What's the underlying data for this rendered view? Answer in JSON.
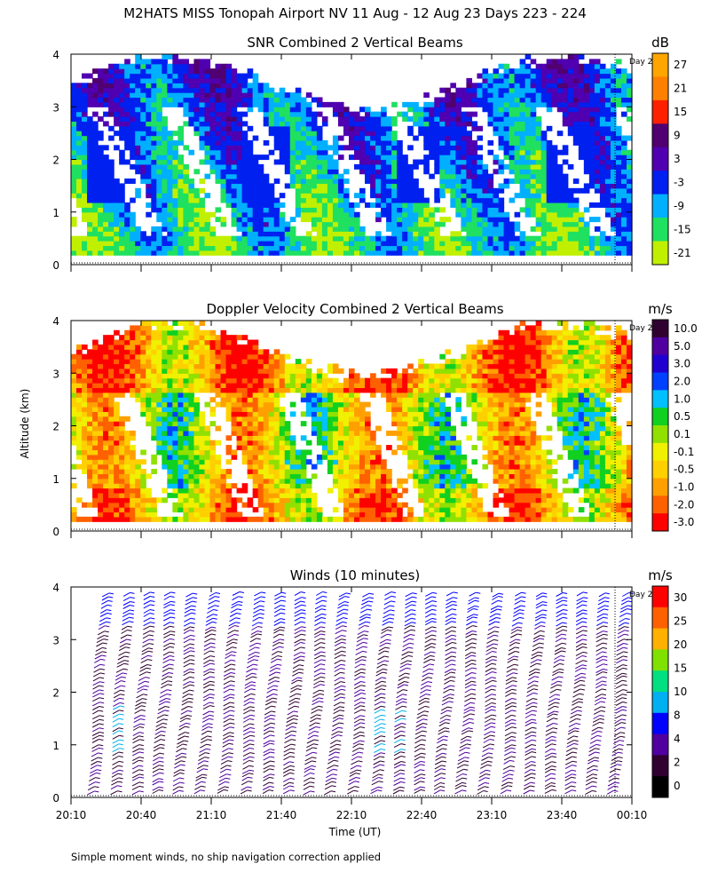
{
  "title": "M2HATS MISS Tonopah Airport NV  11 Aug - 12 Aug 23 Days 223 - 224",
  "y_axis_label": "Altitude (km)",
  "x_axis_label": "Time (UT)",
  "footnote": "Simple moment winds, no ship navigation correction applied",
  "day_marker_label": "Day 2",
  "chart_data": [
    {
      "type": "heatmap",
      "id": "snr",
      "title": "SNR Combined 2 Vertical Beams",
      "units": "dB",
      "ylim": [
        0,
        4
      ],
      "yticks": [
        "0",
        "1",
        "2",
        "3",
        "4"
      ],
      "colorbar_ticks": [
        "27",
        "21",
        "15",
        "9",
        "3",
        "-3",
        "-9",
        "-15",
        "-21"
      ],
      "colorbar_colors": [
        "#ffa500",
        "#ff8000",
        "#ff2000",
        "#500070",
        "#5000b0",
        "#0020f0",
        "#00b0ff",
        "#20e060",
        "#c0f000"
      ]
    },
    {
      "type": "heatmap",
      "id": "doppler",
      "title": "Doppler Velocity Combined 2 Vertical Beams",
      "units": "m/s",
      "ylim": [
        0,
        4
      ],
      "yticks": [
        "0",
        "1",
        "2",
        "3",
        "4"
      ],
      "colorbar_ticks": [
        "10.0",
        "5.0",
        "3.0",
        "2.0",
        "1.0",
        "0.5",
        "0.1",
        "-0.1",
        "-0.5",
        "-1.0",
        "-2.0",
        "-3.0"
      ],
      "colorbar_colors": [
        "#300030",
        "#5000a0",
        "#2000d0",
        "#0040ff",
        "#00c0ff",
        "#10d020",
        "#90e000",
        "#f0f000",
        "#ffd000",
        "#ffa000",
        "#ff6000",
        "#ff0000"
      ]
    },
    {
      "type": "wind-barbs",
      "id": "winds",
      "title": "Winds (10 minutes)",
      "units": "m/s",
      "ylim": [
        0,
        4
      ],
      "yticks": [
        "0",
        "1",
        "2",
        "3",
        "4"
      ],
      "xticks": [
        "20:10",
        "20:40",
        "21:10",
        "21:40",
        "22:10",
        "22:40",
        "23:10",
        "23:40",
        "00:10"
      ],
      "colorbar_ticks": [
        "30",
        "25",
        "20",
        "15",
        "10",
        "8",
        "4",
        "2",
        "0"
      ],
      "colorbar_colors": [
        "#ff0000",
        "#ff6000",
        "#ffb000",
        "#80e000",
        "#00e080",
        "#00b0f0",
        "#0000ff",
        "#5000a0",
        "#300030",
        "#000000"
      ]
    }
  ]
}
